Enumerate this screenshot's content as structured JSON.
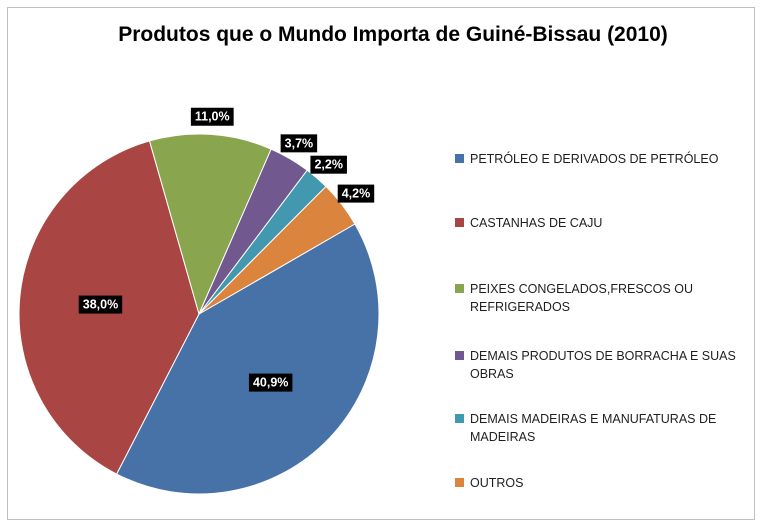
{
  "chart_data": {
    "type": "pie",
    "title": "Produtos que o Mundo Importa de Guiné-Bissau (2010)",
    "categories": [
      "PETRÓLEO E DERIVADOS DE PETRÓLEO",
      "CASTANHAS DE CAJU",
      "PEIXES CONGELADOS,FRESCOS OU REFRIGERADOS",
      "DEMAIS PRODUTOS DE BORRACHA E SUAS OBRAS",
      "DEMAIS MADEIRAS E MANUFATURAS DE MADEIRAS",
      "OUTROS"
    ],
    "values": [
      40.9,
      38.0,
      11.0,
      3.7,
      2.2,
      4.2
    ],
    "value_labels": [
      "40,9%",
      "38,0%",
      "11,0%",
      "3,7%",
      "2,2%",
      "4,2%"
    ],
    "colors": [
      "#4672a8",
      "#a94543",
      "#89a54e",
      "#71588f",
      "#4298af",
      "#db843d"
    ],
    "legend": "right"
  }
}
